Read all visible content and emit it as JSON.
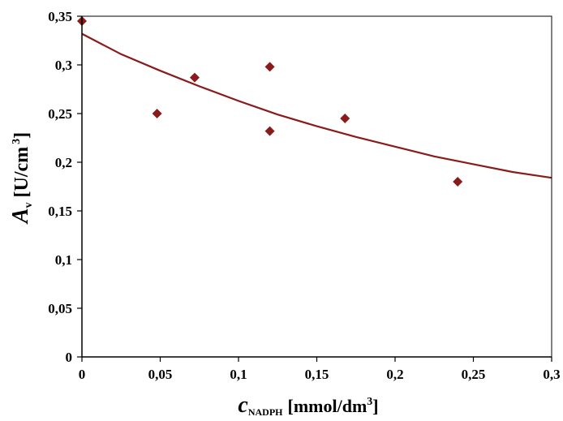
{
  "chart_data": {
    "type": "scatter",
    "x_ticks": [
      "0",
      "0,05",
      "0,1",
      "0,15",
      "0,2",
      "0,25",
      "0,3"
    ],
    "y_ticks": [
      "0",
      "0,05",
      "0,1",
      "0,15",
      "0,2",
      "0,25",
      "0,3",
      "0,35"
    ],
    "xlim": [
      0,
      0.3
    ],
    "ylim": [
      0,
      0.35
    ],
    "xlabel": {
      "symbol": "c",
      "subscript": "NADPH",
      "unit": "[mmol/dm",
      "unit_sup": "3",
      "unit_end": "]"
    },
    "ylabel": {
      "symbol": "A",
      "subscript": "v",
      "unit": "[U/cm",
      "unit_sup": "3",
      "unit_end": "]"
    },
    "grid": false,
    "legend": "none",
    "points": [
      {
        "x": 0.0,
        "y": 0.345
      },
      {
        "x": 0.048,
        "y": 0.25
      },
      {
        "x": 0.072,
        "y": 0.287
      },
      {
        "x": 0.12,
        "y": 0.298
      },
      {
        "x": 0.12,
        "y": 0.232
      },
      {
        "x": 0.168,
        "y": 0.245
      },
      {
        "x": 0.24,
        "y": 0.18
      }
    ],
    "trend_line": {
      "x": [
        0,
        0.025,
        0.05,
        0.075,
        0.1,
        0.125,
        0.15,
        0.175,
        0.2,
        0.225,
        0.25,
        0.275,
        0.3
      ],
      "y": [
        0.332,
        0.311,
        0.294,
        0.278,
        0.263,
        0.249,
        0.237,
        0.226,
        0.216,
        0.206,
        0.198,
        0.19,
        0.184
      ]
    },
    "colors": {
      "marker": "#8b1a1a",
      "line": "#8b1a1a",
      "axis": "#000000"
    }
  }
}
